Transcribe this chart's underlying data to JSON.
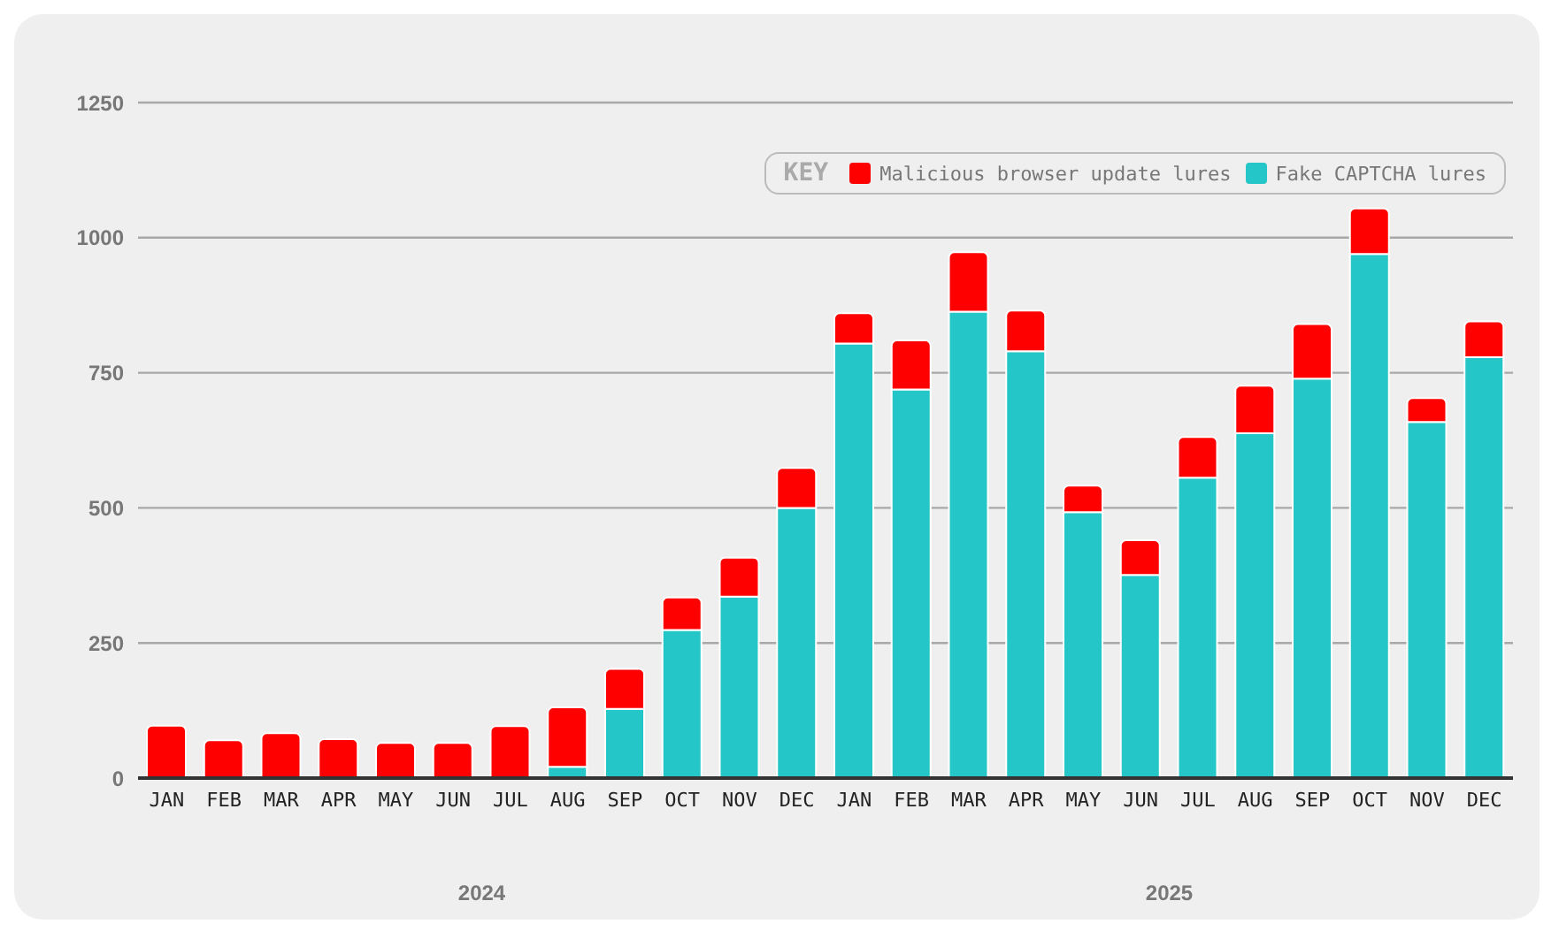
{
  "chart_data": {
    "type": "bar",
    "stacked": true,
    "categories": [
      "JAN",
      "FEB",
      "MAR",
      "APR",
      "MAY",
      "JUN",
      "JUL",
      "AUG",
      "SEP",
      "OCT",
      "NOV",
      "DEC",
      "JAN",
      "FEB",
      "MAR",
      "APR",
      "MAY",
      "JUN",
      "JUL",
      "AUG",
      "SEP",
      "OCT",
      "NOV",
      "DEC"
    ],
    "series": [
      {
        "name": "Fake CAPTCHA lures",
        "color": "#24c6c8",
        "values": [
          0,
          0,
          0,
          0,
          0,
          0,
          0,
          21,
          128,
          274,
          336,
          500,
          804,
          719,
          863,
          790,
          492,
          376,
          556,
          638,
          739,
          970,
          659,
          779
        ]
      },
      {
        "name": "Malicious browser update lures",
        "color": "#fe0000",
        "values": [
          97,
          70,
          83,
          72,
          65,
          65,
          96,
          110,
          74,
          60,
          72,
          74,
          56,
          91,
          110,
          75,
          49,
          64,
          75,
          88,
          101,
          84,
          44,
          66
        ]
      }
    ],
    "ylim": [
      0,
      1250
    ],
    "yticks": [
      0,
      250,
      500,
      750,
      1000,
      1250
    ],
    "grid": "y",
    "legend": "top right",
    "legend_title": "KEY",
    "annotations": [
      "2024",
      "2025"
    ]
  }
}
